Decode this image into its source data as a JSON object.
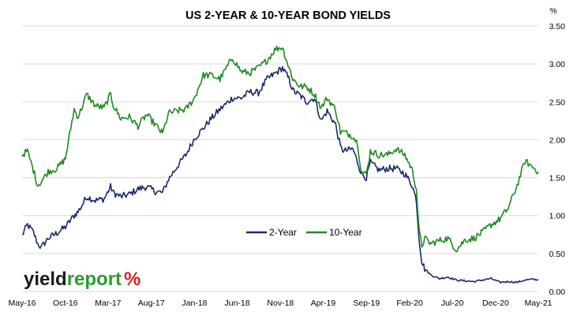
{
  "colors": {
    "series_2y": "#1a2a6c",
    "series_10y": "#1f8a1f",
    "grid": "#d9d9d9",
    "logo_dark": "#1a1a1a",
    "logo_green": "#2e9a2e",
    "logo_red": "#d62020"
  },
  "logo": {
    "part1": "yield",
    "part2": "report",
    "part3": "%"
  },
  "chart_data": {
    "type": "line",
    "title": "US 2-YEAR & 10-YEAR BOND YIELDS",
    "ylabel": "%",
    "xlabel": "",
    "ylim": [
      0,
      3.5
    ],
    "xlim": [
      "2016-05",
      "2021-05"
    ],
    "grid": "horizontal",
    "legend_position": "center-right",
    "y_ticks": [
      "0.00",
      "0.50",
      "1.00",
      "1.50",
      "2.00",
      "2.50",
      "3.00",
      "3.50"
    ],
    "x_ticks": [
      "May-16",
      "Oct-16",
      "Mar-17",
      "Aug-17",
      "Jan-18",
      "Jun-18",
      "Nov-18",
      "Apr-19",
      "Sep-19",
      "Feb-20",
      "Jul-20",
      "Dec-20",
      "May-21"
    ],
    "series": [
      {
        "name": "2-Year",
        "x": [
          "2016-05-01",
          "2016-05-20",
          "2016-06-10",
          "2016-06-25",
          "2016-07-08",
          "2016-08-01",
          "2016-09-01",
          "2016-10-01",
          "2016-11-01",
          "2016-11-15",
          "2016-12-01",
          "2016-12-15",
          "2017-01-15",
          "2017-02-15",
          "2017-03-10",
          "2017-03-20",
          "2017-04-15",
          "2017-05-15",
          "2017-06-15",
          "2017-07-15",
          "2017-08-15",
          "2017-09-10",
          "2017-10-01",
          "2017-11-01",
          "2017-12-01",
          "2018-01-01",
          "2018-02-01",
          "2018-03-01",
          "2018-04-01",
          "2018-05-15",
          "2018-06-15",
          "2018-07-15",
          "2018-08-15",
          "2018-09-15",
          "2018-10-15",
          "2018-11-08",
          "2018-12-01",
          "2018-12-15",
          "2019-01-10",
          "2019-02-01",
          "2019-03-01",
          "2019-03-25",
          "2019-04-15",
          "2019-05-15",
          "2019-06-01",
          "2019-06-15",
          "2019-07-15",
          "2019-08-01",
          "2019-08-15",
          "2019-09-01",
          "2019-09-15",
          "2019-10-15",
          "2019-11-15",
          "2019-12-15",
          "2020-01-15",
          "2020-02-10",
          "2020-02-25",
          "2020-03-05",
          "2020-03-15",
          "2020-03-25",
          "2020-04-15",
          "2020-05-15",
          "2020-06-15",
          "2020-07-15",
          "2020-08-15",
          "2020-09-15",
          "2020-10-15",
          "2020-11-15",
          "2020-12-15",
          "2021-01-15",
          "2021-02-15",
          "2021-03-15",
          "2021-04-15",
          "2021-05-01"
        ],
        "values": [
          0.74,
          0.88,
          0.78,
          0.63,
          0.58,
          0.7,
          0.77,
          0.85,
          1.0,
          1.05,
          1.15,
          1.25,
          1.2,
          1.22,
          1.38,
          1.3,
          1.25,
          1.28,
          1.35,
          1.38,
          1.32,
          1.3,
          1.48,
          1.65,
          1.8,
          2.02,
          2.15,
          2.28,
          2.4,
          2.55,
          2.55,
          2.63,
          2.62,
          2.8,
          2.88,
          2.95,
          2.8,
          2.65,
          2.58,
          2.5,
          2.55,
          2.25,
          2.38,
          2.2,
          1.9,
          1.85,
          1.88,
          1.7,
          1.55,
          1.5,
          1.7,
          1.6,
          1.62,
          1.62,
          1.55,
          1.4,
          1.2,
          0.7,
          0.4,
          0.3,
          0.22,
          0.17,
          0.19,
          0.15,
          0.14,
          0.13,
          0.15,
          0.17,
          0.12,
          0.13,
          0.12,
          0.15,
          0.16,
          0.15
        ]
      },
      {
        "name": "10-Year",
        "x": [
          "2016-05-01",
          "2016-05-20",
          "2016-06-10",
          "2016-06-25",
          "2016-07-08",
          "2016-08-01",
          "2016-09-01",
          "2016-10-01",
          "2016-11-01",
          "2016-11-15",
          "2016-12-01",
          "2016-12-15",
          "2017-01-15",
          "2017-02-15",
          "2017-03-10",
          "2017-03-20",
          "2017-04-15",
          "2017-05-15",
          "2017-06-15",
          "2017-07-15",
          "2017-08-15",
          "2017-09-10",
          "2017-10-01",
          "2017-11-01",
          "2017-12-01",
          "2018-01-01",
          "2018-02-01",
          "2018-03-01",
          "2018-04-01",
          "2018-05-15",
          "2018-06-15",
          "2018-07-15",
          "2018-08-15",
          "2018-09-15",
          "2018-10-15",
          "2018-11-08",
          "2018-12-01",
          "2018-12-15",
          "2019-01-10",
          "2019-02-01",
          "2019-03-01",
          "2019-03-25",
          "2019-04-15",
          "2019-05-15",
          "2019-06-01",
          "2019-06-15",
          "2019-07-15",
          "2019-08-01",
          "2019-08-15",
          "2019-09-01",
          "2019-09-15",
          "2019-10-15",
          "2019-11-15",
          "2019-12-15",
          "2020-01-15",
          "2020-02-10",
          "2020-02-25",
          "2020-03-05",
          "2020-03-15",
          "2020-03-25",
          "2020-04-15",
          "2020-05-15",
          "2020-06-15",
          "2020-07-15",
          "2020-08-15",
          "2020-09-15",
          "2020-10-15",
          "2020-11-15",
          "2020-12-15",
          "2021-01-15",
          "2021-02-15",
          "2021-03-15",
          "2021-04-15",
          "2021-05-01"
        ],
        "values": [
          1.8,
          1.85,
          1.6,
          1.4,
          1.45,
          1.58,
          1.62,
          1.75,
          2.4,
          2.3,
          2.45,
          2.6,
          2.45,
          2.42,
          2.6,
          2.45,
          2.28,
          2.3,
          2.18,
          2.33,
          2.2,
          2.08,
          2.35,
          2.38,
          2.4,
          2.55,
          2.85,
          2.85,
          2.8,
          3.08,
          2.9,
          2.88,
          2.95,
          3.05,
          3.2,
          3.22,
          2.95,
          2.8,
          2.7,
          2.7,
          2.6,
          2.42,
          2.55,
          2.4,
          2.1,
          2.1,
          2.05,
          1.95,
          1.55,
          1.55,
          1.85,
          1.8,
          1.8,
          1.88,
          1.8,
          1.6,
          1.35,
          0.8,
          0.6,
          0.7,
          0.63,
          0.67,
          0.7,
          0.55,
          0.68,
          0.7,
          0.78,
          0.88,
          0.95,
          1.1,
          1.4,
          1.72,
          1.63,
          1.58
        ]
      }
    ]
  }
}
